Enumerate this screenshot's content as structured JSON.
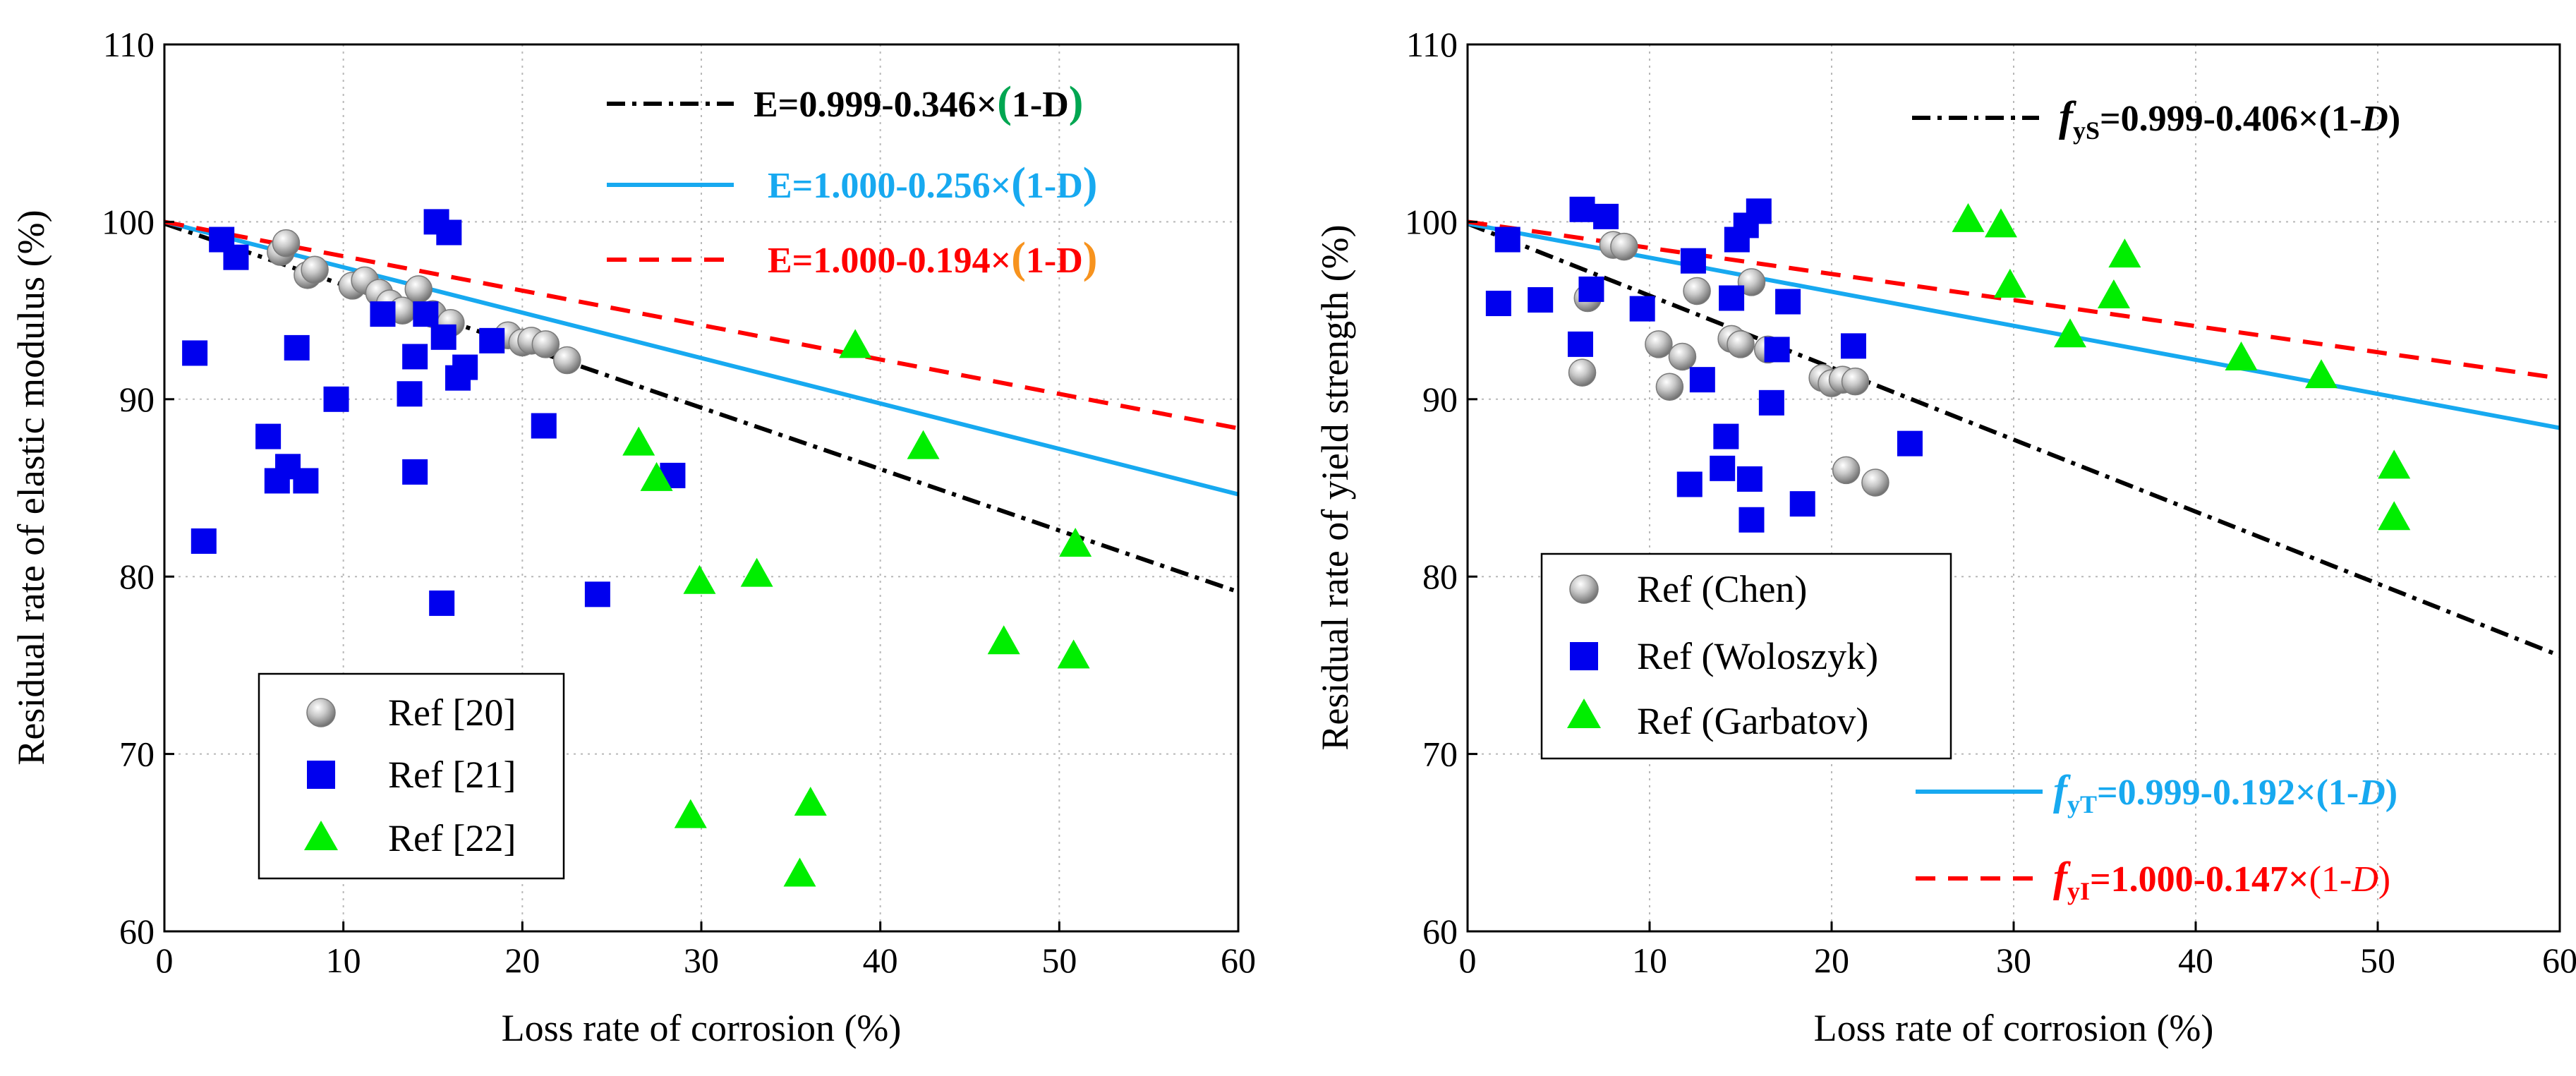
{
  "chart_data": [
    {
      "type": "scatter",
      "xlabel": "Loss rate of corrosion (%)",
      "ylabel": "Residual rate of elastic modulus (%)",
      "xlim": [
        0,
        60
      ],
      "ylim": [
        60,
        110
      ],
      "xticks": [
        "0",
        "10",
        "20",
        "30",
        "40",
        "50",
        "60"
      ],
      "yticks": [
        "60",
        "70",
        "80",
        "90",
        "100",
        "110"
      ],
      "grid": true,
      "legend_position": "bottom-left",
      "series": [
        {
          "name": "Ref [20]",
          "marker": "sphere",
          "color": "#9a9a9a",
          "x": [
            6.5,
            6.8,
            8.0,
            8.4,
            10.5,
            11.2,
            12.0,
            12.6,
            13.3,
            14.2,
            15.0,
            16.0,
            19.2,
            20.0,
            20.5,
            21.3,
            22.5
          ],
          "y": [
            98.3,
            98.8,
            97.0,
            97.3,
            96.4,
            96.7,
            96.0,
            95.4,
            95.0,
            96.2,
            94.8,
            94.3,
            93.6,
            93.2,
            93.3,
            93.1,
            92.2
          ]
        },
        {
          "name": "Ref [21]",
          "marker": "square",
          "color": "#0000ee",
          "x": [
            1.7,
            2.2,
            3.2,
            4.0,
            5.8,
            6.3,
            6.9,
            7.4,
            7.9,
            9.6,
            12.2,
            13.7,
            14.0,
            14.0,
            14.6,
            15.2,
            15.6,
            15.9,
            16.4,
            16.8,
            18.3,
            21.2,
            24.2,
            28.4,
            15.5
          ],
          "y": [
            92.6,
            82.0,
            99.0,
            98.0,
            87.9,
            85.4,
            86.2,
            92.9,
            85.4,
            90.0,
            94.8,
            90.3,
            85.9,
            92.4,
            94.8,
            100.0,
            93.5,
            99.4,
            91.2,
            91.8,
            93.3,
            88.5,
            79.0,
            85.7,
            78.5
          ]
        },
        {
          "name": "Ref [22]",
          "marker": "triangle",
          "color": "#00ee00",
          "x": [
            26.5,
            27.5,
            29.4,
            29.9,
            33.1,
            35.5,
            36.1,
            38.6,
            42.4,
            46.9,
            50.8,
            50.9
          ],
          "y": [
            87.5,
            85.5,
            66.5,
            79.7,
            80.1,
            63.2,
            67.2,
            93.0,
            87.3,
            76.3,
            75.5,
            81.8
          ]
        }
      ],
      "fit_lines": [
        {
          "equation": "E=0.999-0.346×(1-D)",
          "style": "dash-dot",
          "color": "#000000",
          "intercept": 99.9,
          "slope": -0.346
        },
        {
          "equation": "E=1.000-0.256×(1-D)",
          "style": "solid",
          "color": "#17a9f0",
          "intercept": 100.0,
          "slope": -0.256
        },
        {
          "equation": "E=1.000-0.194×(1-D)",
          "style": "dashed",
          "color": "#ff0000",
          "intercept": 100.0,
          "slope": -0.194
        }
      ],
      "equation_labels": [
        {
          "prefix": "E=0.999-0.346×",
          "lparen": "(",
          "mid": "1-D",
          "rparen": ")",
          "main_color": "#000000",
          "paren_color": "#00a651",
          "mid_color": "#000000",
          "mid_italic": false
        },
        {
          "prefix": "E=1.000-0.256×",
          "lparen": "(",
          "mid": "1-D",
          "rparen": ")",
          "main_color": "#17a9f0",
          "paren_color": "#17a9f0",
          "mid_color": "#17a9f0",
          "mid_italic": false
        },
        {
          "prefix": "E=1.000-0.194×",
          "lparen": "(",
          "mid": "1-D",
          "rparen": ")",
          "main_color": "#ff0000",
          "paren_color": "#f7931e",
          "mid_color": "#ff0000",
          "mid_italic": false
        }
      ]
    },
    {
      "type": "scatter",
      "xlabel": "Loss rate of corrosion (%)",
      "ylabel": "Residual rate of yield strength  (%)",
      "xlim": [
        0,
        60
      ],
      "ylim": [
        60,
        110
      ],
      "xticks": [
        "0",
        "10",
        "20",
        "30",
        "40",
        "50",
        "60"
      ],
      "yticks": [
        "60",
        "70",
        "80",
        "90",
        "100",
        "110"
      ],
      "grid": true,
      "legend_position": "center-left",
      "series": [
        {
          "name": "Ref (Chen)",
          "marker": "sphere",
          "color": "#9a9a9a",
          "x": [
            6.3,
            6.6,
            8.0,
            8.6,
            10.5,
            11.1,
            11.8,
            12.6,
            14.5,
            15.0,
            15.6,
            16.5,
            19.5,
            20.0,
            20.6,
            21.3,
            20.8,
            22.4
          ],
          "y": [
            91.5,
            95.7,
            98.7,
            98.6,
            93.1,
            90.7,
            92.4,
            96.1,
            93.4,
            93.1,
            96.6,
            92.8,
            91.2,
            90.9,
            91.1,
            91.0,
            86.0,
            85.3
          ]
        },
        {
          "name": "Ref (Woloszyk)",
          "marker": "square",
          "color": "#0000ee",
          "x": [
            1.7,
            2.2,
            4.0,
            6.2,
            6.3,
            6.8,
            7.6,
            9.6,
            12.2,
            12.4,
            12.9,
            14.0,
            14.2,
            14.5,
            14.8,
            15.3,
            15.5,
            15.6,
            16.0,
            16.7,
            17.0,
            17.6,
            18.4,
            21.2,
            24.3
          ],
          "y": [
            95.4,
            99.0,
            95.6,
            93.1,
            100.7,
            96.2,
            100.3,
            95.1,
            85.2,
            97.8,
            91.1,
            86.1,
            87.9,
            95.7,
            99.0,
            99.8,
            85.5,
            83.2,
            100.6,
            89.8,
            92.8,
            95.5,
            84.1,
            93.0,
            87.5
          ]
        },
        {
          "name": "Ref (Garbatov)",
          "marker": "triangle",
          "color": "#00ee00",
          "x": [
            27.5,
            29.3,
            29.8,
            33.1,
            35.5,
            36.1,
            42.5,
            46.9,
            50.9,
            50.9
          ],
          "y": [
            100.1,
            99.8,
            96.4,
            93.6,
            95.8,
            98.1,
            92.3,
            91.3,
            86.2,
            83.3
          ]
        }
      ],
      "fit_lines": [
        {
          "equation": "fyS=0.999-0.406×(1-D)",
          "style": "dash-dot",
          "color": "#000000",
          "intercept": 99.9,
          "slope": -0.406
        },
        {
          "equation": "fyT=0.999-0.192×(1-D)",
          "style": "solid",
          "color": "#17a9f0",
          "intercept": 99.9,
          "slope": -0.192
        },
        {
          "equation": "fyI=1.000-0.147×(1-D)",
          "style": "dashed",
          "color": "#ff0000",
          "intercept": 100.0,
          "slope": -0.147
        }
      ],
      "equation_labels": [
        {
          "f": "f",
          "sub": "yS",
          "prefix": "=0.999-0.406×",
          "lparen": "(",
          "mid_a": "1-",
          "mid_b": "D",
          "rparen": ")",
          "main_color": "#000000",
          "paren_color": "#000000",
          "tail_color": "#000000",
          "tail_bold": true
        },
        {
          "f": "f",
          "sub": "yT",
          "prefix": "=0.999-0.192×",
          "lparen": "(",
          "mid_a": "1-",
          "mid_b": "D",
          "rparen": ")",
          "main_color": "#17a9f0",
          "paren_color": "#17a9f0",
          "tail_color": "#17a9f0",
          "tail_bold": true
        },
        {
          "f": "f",
          "sub": "yI",
          "prefix": "=1.000-0.147×",
          "lparen": "(",
          "mid_a": "1-",
          "mid_b": "D",
          "rparen": ")",
          "main_color": "#ff0000",
          "paren_color": "#ff0000",
          "tail_color": "#ff0000",
          "tail_bold": false
        }
      ]
    }
  ]
}
